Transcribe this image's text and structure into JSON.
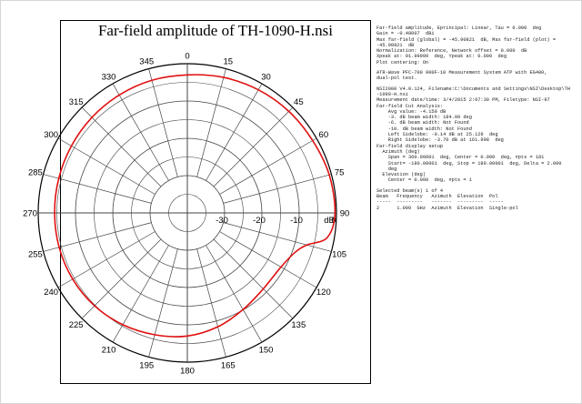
{
  "chart_data": {
    "type": "polar-line",
    "title": "Far-field amplitude of TH-1090-H.nsi",
    "radial_unit": "dB",
    "radial_range": [
      -40,
      0
    ],
    "radial_ticks": [
      -30,
      -20,
      -10,
      0
    ],
    "angle_ticks": [
      0,
      15,
      30,
      45,
      60,
      75,
      90,
      105,
      120,
      135,
      150,
      165,
      180,
      195,
      210,
      225,
      240,
      255,
      270,
      285,
      300,
      315,
      330,
      345
    ],
    "angle_tick_labels": [
      "0",
      "15",
      "30",
      "45",
      "60",
      "75",
      "90",
      "105",
      "120",
      "135",
      "150",
      "165",
      "180",
      "195",
      "210",
      "225",
      "240",
      "255",
      "270",
      "285",
      "300",
      "315",
      "330",
      "345"
    ],
    "grid": true,
    "series": [
      {
        "color": "#e01010",
        "angles": [
          0,
          15,
          30,
          45,
          60,
          75,
          90,
          100,
          105,
          110,
          120,
          135,
          150,
          165,
          180,
          195,
          210,
          225,
          240,
          255,
          270,
          285,
          300,
          315,
          330,
          345,
          360
        ],
        "values": [
          -3.0,
          -2.4,
          -1.9,
          -1.5,
          -1.2,
          -0.6,
          -0.4,
          -1.9,
          -6.8,
          -9.2,
          -11.0,
          -11.2,
          -10.1,
          -8.4,
          -7.0,
          -6.2,
          -5.4,
          -4.8,
          -4.5,
          -4.4,
          -4.4,
          -4.3,
          -4.1,
          -3.8,
          -3.5,
          -3.2,
          -3.0
        ]
      }
    ]
  },
  "info_lines": [
    "Far-field amplitude, Eprincipal: Linear, Tau = 0.000  deg",
    "Gain = -0.48007  dBi",
    "Max far-field (global) = -45.90821  dB, Max far-field (plot) =",
    "-45.90821  dB",
    "Normalization: Reference, Network offset = 0.000  dB",
    "Xpeak at: 91.99999  deg, Ypeak at: 0.000  deg",
    "Plot centering: On",
    "",
    "ATR-Wave PFC-700 900F-10 Measurement System ATP with EG480,",
    "dual-pol test.",
    "",
    "NSI2000 V4.0.124, Filename:C:\\Documents and Settings\\NSI\\Desktop\\TH",
    "-1090-H.nsi",
    "Measurement date/time: 3/4/2015 2:07:30 PM, Filetype: NSI-97",
    "Far-field Cut Analysis:",
    "    Avg value: -4.150 dB",
    "    -3. dB beam width: 184.09 deg",
    "    -6. dB beam width: Not Found",
    "    -10. dB beam width: Not Found",
    "    Left Sidelobe: -0.14 dB at 25.129  deg",
    "    Right Sidelobe: -3.70 dB at 161.998  deg",
    "Far-field display setup",
    "  Azimuth (deg)",
    "    Span = 360.00001  deg, Center = 0.000  deg, #pts = 181",
    "    Start= -180.00001  deg, Stop = 180.00001  deg, Delta = 2.000",
    "    deg",
    "  Elevation (deg)",
    "    Center = 0.000  deg, #pts = 1",
    "",
    "Selected beam(s) 1 of 4",
    "Beam   Frequency   Azimuth  Elevation  Pol",
    "-----  ---------   -------  ---------  -----",
    "2      1.090  GHz  Azimuth  Elevation  Single-pol"
  ]
}
